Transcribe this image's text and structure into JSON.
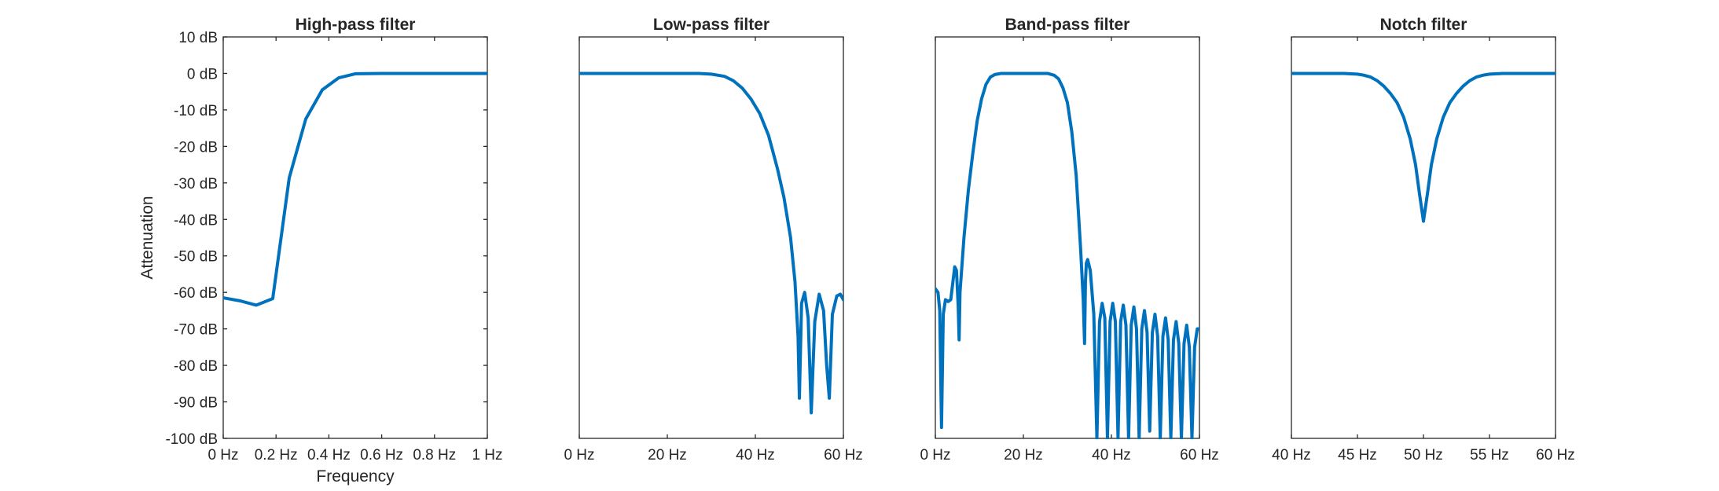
{
  "chart_data": [
    {
      "type": "line",
      "title": "High-pass filter",
      "xlabel": "Frequency",
      "ylabel": "Attenuation",
      "xlim": [
        0,
        1
      ],
      "ylim": [
        -100,
        10
      ],
      "x_ticks": [
        0,
        0.2,
        0.4,
        0.6,
        0.8,
        1
      ],
      "x_tick_labels": [
        "0 Hz",
        "0.2 Hz",
        "0.4 Hz",
        "0.6 Hz",
        "0.8 Hz",
        "1 Hz"
      ],
      "y_ticks": [
        10,
        0,
        -10,
        -20,
        -30,
        -40,
        -50,
        -60,
        -70,
        -80,
        -90,
        -100
      ],
      "y_tick_labels": [
        "10 dB",
        "0 dB",
        "-10 dB",
        "-20 dB",
        "-30 dB",
        "-40 dB",
        "-50 dB",
        "-60 dB",
        "-70 dB",
        "-80 dB",
        "-90 dB",
        "-100 dB"
      ],
      "grid": false,
      "series": [
        {
          "color": "#0072BD",
          "x": [
            0,
            0.0625,
            0.125,
            0.1875,
            0.25,
            0.3125,
            0.375,
            0.4375,
            0.5,
            0.6,
            0.7,
            0.8,
            0.9,
            1.0
          ],
          "y": [
            -61.5,
            -62.3,
            -63.5,
            -61.7,
            -28.6,
            -12.5,
            -4.5,
            -1.2,
            -0.1,
            0,
            0,
            0,
            0,
            0
          ]
        }
      ]
    },
    {
      "type": "line",
      "title": "Low-pass filter",
      "xlim": [
        0,
        60
      ],
      "ylim": [
        -100,
        10
      ],
      "x_ticks": [
        0,
        20,
        40,
        60
      ],
      "x_tick_labels": [
        "0 Hz",
        "20 Hz",
        "40 Hz",
        "60 Hz"
      ],
      "grid": false,
      "series": [
        {
          "color": "#0072BD",
          "x": [
            0,
            10,
            20,
            27,
            30,
            33,
            35,
            37,
            39,
            41,
            43,
            45,
            46.5,
            48,
            49,
            49.7,
            50.0,
            50.5,
            51.2,
            52.0,
            52.7,
            53.5,
            54.5,
            55.5,
            56.2,
            56.8,
            57.5,
            58.5,
            59.3,
            60.0
          ],
          "y": [
            0,
            0,
            0,
            0,
            -0.2,
            -0.8,
            -2,
            -4,
            -7,
            -11,
            -17,
            -26,
            -34,
            -45,
            -57,
            -72,
            -89,
            -63,
            -60,
            -67,
            -93,
            -68,
            -60.5,
            -65,
            -80,
            -89,
            -66,
            -61,
            -60.5,
            -62
          ]
        }
      ]
    },
    {
      "type": "line",
      "title": "Band-pass filter",
      "xlim": [
        0,
        60
      ],
      "ylim": [
        -100,
        10
      ],
      "x_ticks": [
        0,
        20,
        40,
        60
      ],
      "x_tick_labels": [
        "0 Hz",
        "20 Hz",
        "40 Hz",
        "60 Hz"
      ],
      "grid": false,
      "series": [
        {
          "color": "#0072BD",
          "x": [
            0,
            0.6,
            1.0,
            1.4,
            1.8,
            2.3,
            2.9,
            3.5,
            4.0,
            4.4,
            4.8,
            5.2,
            5.4,
            5.6,
            6.5,
            7.5,
            8.5,
            9.5,
            10.5,
            11.5,
            12.5,
            13.5,
            15,
            17,
            20,
            23,
            25.5,
            27,
            28,
            29,
            30,
            31,
            32,
            33,
            33.6,
            33.9,
            34.1,
            34.3,
            34.6,
            35.2,
            36,
            36.7,
            37.3,
            37.9,
            38.5,
            39.1,
            39.7,
            40.3,
            40.9,
            41.5,
            42.1,
            42.7,
            43.3,
            43.9,
            44.5,
            45.1,
            45.7,
            46.3,
            46.9,
            47.5,
            48.1,
            48.7,
            49.3,
            49.9,
            50.5,
            51.1,
            51.7,
            52.3,
            52.9,
            53.5,
            54.1,
            54.7,
            55.3,
            55.9,
            56.5,
            57.1,
            57.7,
            58.3,
            58.9,
            59.5,
            60.0
          ],
          "y": [
            -59,
            -60,
            -65,
            -97,
            -66,
            -62,
            -62.5,
            -62,
            -57,
            -53,
            -54,
            -64,
            -73,
            -60,
            -45,
            -32,
            -22,
            -13,
            -7,
            -3,
            -1,
            -0.3,
            0,
            0,
            0,
            0,
            0,
            -0.5,
            -1.5,
            -4,
            -8,
            -16,
            -28,
            -48,
            -62,
            -74,
            -57,
            -52,
            -51,
            -54,
            -66,
            -100,
            -68,
            -63,
            -67,
            -100,
            -68,
            -63,
            -68,
            -100,
            -68,
            -63.5,
            -69,
            -100,
            -69,
            -64,
            -70,
            -100,
            -70,
            -65,
            -71,
            -98,
            -71,
            -66,
            -72,
            -100,
            -72,
            -67,
            -73,
            -100,
            -73,
            -68,
            -74,
            -100,
            -74,
            -69,
            -75,
            -100,
            -75,
            -70,
            -70
          ]
        }
      ]
    },
    {
      "type": "line",
      "title": "Notch filter",
      "xlim": [
        40,
        60
      ],
      "ylim": [
        -100,
        10
      ],
      "x_ticks": [
        40,
        45,
        50,
        55,
        60
      ],
      "x_tick_labels": [
        "40 Hz",
        "45 Hz",
        "50 Hz",
        "55 Hz",
        "60 Hz"
      ],
      "grid": false,
      "series": [
        {
          "color": "#0072BD",
          "x": [
            40,
            41,
            42,
            43,
            44,
            45,
            45.5,
            46,
            46.5,
            47,
            47.5,
            48,
            48.5,
            49,
            49.4,
            49.7,
            50,
            50.3,
            50.6,
            51,
            51.5,
            52,
            52.5,
            53,
            53.5,
            54,
            54.5,
            55,
            56,
            57,
            58,
            59,
            60
          ],
          "y": [
            0,
            0,
            0,
            0,
            0,
            -0.2,
            -0.5,
            -1,
            -2,
            -3.5,
            -5.5,
            -8,
            -12,
            -18,
            -25,
            -33,
            -40.5,
            -33,
            -25,
            -18,
            -12,
            -8,
            -5.5,
            -3.5,
            -2,
            -1,
            -0.5,
            -0.2,
            0,
            0,
            0,
            0,
            0
          ]
        }
      ]
    }
  ]
}
